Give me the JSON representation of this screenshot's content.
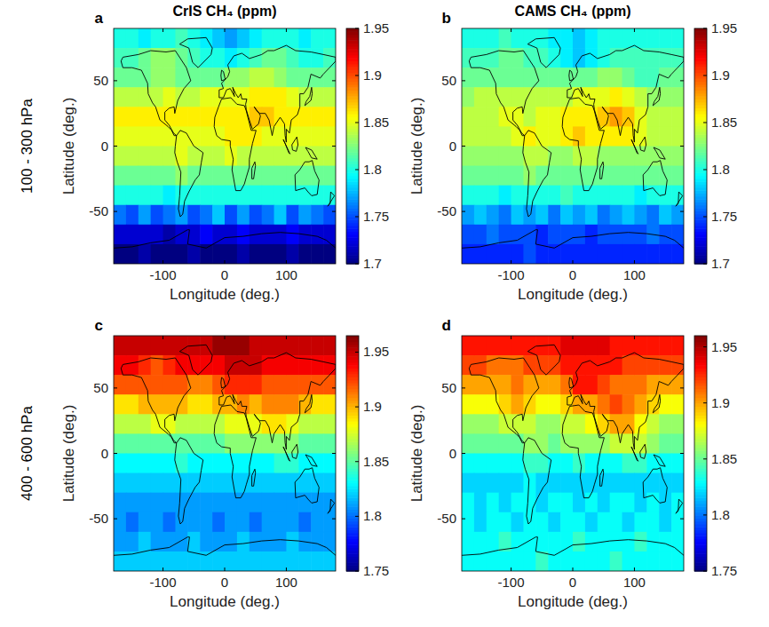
{
  "figure": {
    "column_titles": [
      "CrIS CH₄ (ppm)",
      "CAMS CH₄ (ppm)"
    ],
    "row_labels": [
      "100 - 300 hPa",
      "400 - 600 hPa"
    ]
  },
  "chart_data": [
    {
      "type": "heatmap",
      "label": "a",
      "x_label": "Longitude (deg.)",
      "y_label": "Latitude (deg.)",
      "xlim": [
        -180,
        180
      ],
      "ylim": [
        -90,
        90
      ],
      "xticks": [
        -100,
        0,
        100
      ],
      "yticks": [
        -50,
        0,
        50
      ],
      "x": [
        -170,
        -150,
        -130,
        -110,
        -90,
        -70,
        -50,
        -30,
        -10,
        10,
        30,
        50,
        70,
        90,
        110,
        130,
        150,
        170
      ],
      "y": [
        82.5,
        67.5,
        52.5,
        37.5,
        22.5,
        7.5,
        -7.5,
        -22.5,
        -37.5,
        -52.5,
        -67.5,
        -82.5
      ],
      "cells": [
        [
          1.8,
          1.8,
          1.79,
          1.8,
          1.8,
          1.81,
          1.8,
          1.79,
          1.78,
          1.77,
          1.78,
          1.79,
          1.8,
          1.8,
          1.8,
          1.79,
          1.8,
          1.8
        ],
        [
          1.81,
          1.81,
          1.82,
          1.83,
          1.83,
          1.82,
          1.81,
          1.8,
          1.8,
          1.79,
          1.8,
          1.81,
          1.82,
          1.82,
          1.81,
          1.8,
          1.8,
          1.81
        ],
        [
          1.82,
          1.82,
          1.82,
          1.83,
          1.83,
          1.82,
          1.82,
          1.82,
          1.82,
          1.83,
          1.83,
          1.84,
          1.84,
          1.83,
          1.82,
          1.82,
          1.82,
          1.82
        ],
        [
          1.84,
          1.84,
          1.84,
          1.84,
          1.85,
          1.84,
          1.84,
          1.85,
          1.85,
          1.85,
          1.85,
          1.86,
          1.86,
          1.86,
          1.85,
          1.84,
          1.84,
          1.84
        ],
        [
          1.86,
          1.86,
          1.86,
          1.86,
          1.86,
          1.86,
          1.86,
          1.86,
          1.86,
          1.86,
          1.86,
          1.87,
          1.87,
          1.86,
          1.86,
          1.86,
          1.86,
          1.86
        ],
        [
          1.85,
          1.85,
          1.85,
          1.85,
          1.85,
          1.85,
          1.85,
          1.85,
          1.85,
          1.86,
          1.86,
          1.86,
          1.85,
          1.85,
          1.85,
          1.85,
          1.85,
          1.85
        ],
        [
          1.84,
          1.84,
          1.84,
          1.84,
          1.84,
          1.85,
          1.84,
          1.84,
          1.84,
          1.85,
          1.84,
          1.84,
          1.84,
          1.84,
          1.84,
          1.84,
          1.84,
          1.84
        ],
        [
          1.82,
          1.82,
          1.82,
          1.82,
          1.82,
          1.83,
          1.82,
          1.82,
          1.82,
          1.82,
          1.82,
          1.82,
          1.82,
          1.82,
          1.82,
          1.82,
          1.82,
          1.82
        ],
        [
          1.8,
          1.8,
          1.8,
          1.8,
          1.79,
          1.8,
          1.8,
          1.8,
          1.8,
          1.8,
          1.8,
          1.8,
          1.8,
          1.8,
          1.8,
          1.8,
          1.8,
          1.8
        ],
        [
          1.76,
          1.75,
          1.77,
          1.75,
          1.76,
          1.77,
          1.75,
          1.76,
          1.78,
          1.75,
          1.77,
          1.75,
          1.76,
          1.78,
          1.75,
          1.77,
          1.76,
          1.75
        ],
        [
          1.72,
          1.72,
          1.72,
          1.72,
          1.71,
          1.72,
          1.72,
          1.73,
          1.72,
          1.72,
          1.73,
          1.72,
          1.72,
          1.72,
          1.73,
          1.72,
          1.72,
          1.72
        ],
        [
          1.7,
          1.7,
          1.71,
          1.7,
          1.7,
          1.7,
          1.71,
          1.7,
          1.7,
          1.7,
          1.71,
          1.7,
          1.7,
          1.7,
          1.71,
          1.7,
          1.7,
          1.7
        ]
      ],
      "colorbar_lim": [
        1.7,
        1.95
      ],
      "colorbar_ticks": [
        1.7,
        1.75,
        1.8,
        1.85,
        1.9,
        1.95
      ]
    },
    {
      "type": "heatmap",
      "label": "b",
      "x_label": "Longitude (deg.)",
      "y_label": "Latitude (deg.)",
      "xlim": [
        -180,
        180
      ],
      "ylim": [
        -90,
        90
      ],
      "xticks": [
        -100,
        0,
        100
      ],
      "yticks": [
        -50,
        0,
        50
      ],
      "x": [
        -170,
        -150,
        -130,
        -110,
        -90,
        -70,
        -50,
        -30,
        -10,
        10,
        30,
        50,
        70,
        90,
        110,
        130,
        150,
        170
      ],
      "y": [
        82.5,
        67.5,
        52.5,
        37.5,
        22.5,
        7.5,
        -7.5,
        -22.5,
        -37.5,
        -52.5,
        -67.5,
        -82.5
      ],
      "cells": [
        [
          1.8,
          1.8,
          1.8,
          1.81,
          1.8,
          1.8,
          1.8,
          1.79,
          1.79,
          1.78,
          1.79,
          1.8,
          1.8,
          1.8,
          1.8,
          1.8,
          1.8,
          1.8
        ],
        [
          1.81,
          1.81,
          1.81,
          1.82,
          1.82,
          1.81,
          1.81,
          1.8,
          1.79,
          1.78,
          1.79,
          1.8,
          1.81,
          1.81,
          1.81,
          1.81,
          1.81,
          1.81
        ],
        [
          1.82,
          1.82,
          1.82,
          1.82,
          1.82,
          1.82,
          1.82,
          1.82,
          1.82,
          1.82,
          1.82,
          1.83,
          1.83,
          1.82,
          1.81,
          1.81,
          1.82,
          1.82
        ],
        [
          1.83,
          1.84,
          1.84,
          1.84,
          1.84,
          1.84,
          1.84,
          1.84,
          1.84,
          1.85,
          1.85,
          1.85,
          1.86,
          1.85,
          1.84,
          1.83,
          1.83,
          1.83
        ],
        [
          1.84,
          1.84,
          1.84,
          1.85,
          1.85,
          1.84,
          1.85,
          1.85,
          1.86,
          1.86,
          1.86,
          1.87,
          1.88,
          1.87,
          1.85,
          1.84,
          1.84,
          1.84
        ],
        [
          1.84,
          1.84,
          1.84,
          1.84,
          1.85,
          1.86,
          1.85,
          1.85,
          1.86,
          1.87,
          1.86,
          1.86,
          1.86,
          1.86,
          1.85,
          1.84,
          1.84,
          1.84
        ],
        [
          1.83,
          1.83,
          1.83,
          1.83,
          1.83,
          1.84,
          1.84,
          1.83,
          1.83,
          1.84,
          1.84,
          1.83,
          1.83,
          1.83,
          1.83,
          1.83,
          1.83,
          1.83
        ],
        [
          1.82,
          1.82,
          1.82,
          1.82,
          1.82,
          1.83,
          1.82,
          1.82,
          1.82,
          1.82,
          1.82,
          1.82,
          1.82,
          1.82,
          1.82,
          1.82,
          1.82,
          1.82
        ],
        [
          1.8,
          1.8,
          1.8,
          1.79,
          1.8,
          1.8,
          1.8,
          1.8,
          1.81,
          1.8,
          1.8,
          1.8,
          1.8,
          1.8,
          1.79,
          1.8,
          1.8,
          1.8
        ],
        [
          1.77,
          1.78,
          1.77,
          1.76,
          1.78,
          1.77,
          1.78,
          1.76,
          1.78,
          1.77,
          1.78,
          1.76,
          1.77,
          1.78,
          1.77,
          1.76,
          1.78,
          1.77
        ],
        [
          1.75,
          1.75,
          1.76,
          1.75,
          1.75,
          1.75,
          1.74,
          1.75,
          1.75,
          1.75,
          1.74,
          1.75,
          1.75,
          1.75,
          1.75,
          1.76,
          1.75,
          1.75
        ],
        [
          1.74,
          1.74,
          1.74,
          1.74,
          1.74,
          1.75,
          1.74,
          1.74,
          1.74,
          1.74,
          1.74,
          1.74,
          1.74,
          1.74,
          1.74,
          1.74,
          1.74,
          1.74
        ]
      ],
      "colorbar_lim": [
        1.7,
        1.95
      ],
      "colorbar_ticks": [
        1.7,
        1.75,
        1.8,
        1.85,
        1.9,
        1.95
      ]
    },
    {
      "type": "heatmap",
      "label": "c",
      "x_label": "Longitude (deg.)",
      "y_label": "Latitude (deg.)",
      "xlim": [
        -180,
        180
      ],
      "ylim": [
        -90,
        90
      ],
      "xticks": [
        -100,
        0,
        100
      ],
      "yticks": [
        -50,
        0,
        50
      ],
      "x": [
        -170,
        -150,
        -130,
        -110,
        -90,
        -70,
        -50,
        -30,
        -10,
        10,
        30,
        50,
        70,
        90,
        110,
        130,
        150,
        170
      ],
      "y": [
        82.5,
        67.5,
        52.5,
        37.5,
        22.5,
        7.5,
        -7.5,
        -22.5,
        -37.5,
        -52.5,
        -67.5,
        -82.5
      ],
      "cells": [
        [
          1.95,
          1.95,
          1.95,
          1.95,
          1.95,
          1.95,
          1.95,
          1.95,
          1.96,
          1.96,
          1.96,
          1.95,
          1.95,
          1.95,
          1.95,
          1.95,
          1.95,
          1.95
        ],
        [
          1.94,
          1.94,
          1.93,
          1.92,
          1.93,
          1.94,
          1.94,
          1.94,
          1.94,
          1.95,
          1.95,
          1.95,
          1.94,
          1.94,
          1.94,
          1.94,
          1.94,
          1.94
        ],
        [
          1.92,
          1.92,
          1.92,
          1.92,
          1.92,
          1.92,
          1.91,
          1.91,
          1.92,
          1.93,
          1.93,
          1.93,
          1.92,
          1.92,
          1.92,
          1.92,
          1.92,
          1.92
        ],
        [
          1.89,
          1.89,
          1.9,
          1.9,
          1.9,
          1.9,
          1.89,
          1.89,
          1.9,
          1.9,
          1.91,
          1.9,
          1.91,
          1.91,
          1.91,
          1.9,
          1.89,
          1.89
        ],
        [
          1.87,
          1.87,
          1.87,
          1.88,
          1.88,
          1.87,
          1.87,
          1.87,
          1.87,
          1.88,
          1.88,
          1.88,
          1.89,
          1.89,
          1.88,
          1.87,
          1.87,
          1.87
        ],
        [
          1.85,
          1.85,
          1.85,
          1.85,
          1.85,
          1.85,
          1.85,
          1.85,
          1.85,
          1.86,
          1.86,
          1.86,
          1.86,
          1.86,
          1.86,
          1.85,
          1.85,
          1.85
        ],
        [
          1.83,
          1.83,
          1.83,
          1.83,
          1.83,
          1.84,
          1.83,
          1.83,
          1.83,
          1.83,
          1.83,
          1.83,
          1.83,
          1.84,
          1.84,
          1.83,
          1.83,
          1.83
        ],
        [
          1.82,
          1.82,
          1.82,
          1.82,
          1.82,
          1.82,
          1.82,
          1.82,
          1.82,
          1.82,
          1.82,
          1.82,
          1.82,
          1.82,
          1.82,
          1.82,
          1.82,
          1.82
        ],
        [
          1.81,
          1.81,
          1.81,
          1.81,
          1.81,
          1.81,
          1.81,
          1.81,
          1.81,
          1.81,
          1.81,
          1.81,
          1.81,
          1.81,
          1.81,
          1.81,
          1.81,
          1.81
        ],
        [
          1.81,
          1.8,
          1.81,
          1.81,
          1.8,
          1.81,
          1.81,
          1.81,
          1.8,
          1.81,
          1.81,
          1.8,
          1.81,
          1.81,
          1.81,
          1.8,
          1.81,
          1.81
        ],
        [
          1.81,
          1.81,
          1.82,
          1.81,
          1.81,
          1.81,
          1.82,
          1.81,
          1.81,
          1.81,
          1.82,
          1.81,
          1.81,
          1.81,
          1.82,
          1.81,
          1.81,
          1.81
        ],
        [
          1.82,
          1.82,
          1.82,
          1.82,
          1.82,
          1.82,
          1.82,
          1.82,
          1.82,
          1.82,
          1.82,
          1.82,
          1.82,
          1.82,
          1.82,
          1.82,
          1.82,
          1.82
        ]
      ],
      "colorbar_lim": [
        1.75,
        1.965
      ],
      "colorbar_ticks": [
        1.75,
        1.8,
        1.85,
        1.9,
        1.95
      ]
    },
    {
      "type": "heatmap",
      "label": "d",
      "x_label": "Longitude (deg.)",
      "y_label": "Latitude (deg.)",
      "xlim": [
        -180,
        180
      ],
      "ylim": [
        -90,
        90
      ],
      "xticks": [
        -100,
        0,
        100
      ],
      "yticks": [
        -50,
        0,
        50
      ],
      "x": [
        -170,
        -150,
        -130,
        -110,
        -90,
        -70,
        -50,
        -30,
        -10,
        10,
        30,
        50,
        70,
        90,
        110,
        130,
        150,
        170
      ],
      "y": [
        82.5,
        67.5,
        52.5,
        37.5,
        22.5,
        7.5,
        -7.5,
        -22.5,
        -37.5,
        -52.5,
        -67.5,
        -82.5
      ],
      "cells": [
        [
          1.93,
          1.93,
          1.93,
          1.93,
          1.93,
          1.93,
          1.93,
          1.93,
          1.94,
          1.94,
          1.94,
          1.94,
          1.93,
          1.93,
          1.93,
          1.93,
          1.93,
          1.93
        ],
        [
          1.92,
          1.92,
          1.91,
          1.91,
          1.91,
          1.92,
          1.92,
          1.92,
          1.93,
          1.93,
          1.93,
          1.93,
          1.93,
          1.92,
          1.92,
          1.92,
          1.92,
          1.92
        ],
        [
          1.9,
          1.9,
          1.9,
          1.9,
          1.91,
          1.9,
          1.9,
          1.9,
          1.91,
          1.93,
          1.93,
          1.92,
          1.91,
          1.91,
          1.91,
          1.9,
          1.9,
          1.9
        ],
        [
          1.88,
          1.88,
          1.88,
          1.89,
          1.9,
          1.89,
          1.88,
          1.88,
          1.89,
          1.9,
          1.9,
          1.91,
          1.92,
          1.91,
          1.9,
          1.89,
          1.88,
          1.88
        ],
        [
          1.86,
          1.86,
          1.86,
          1.87,
          1.87,
          1.87,
          1.86,
          1.86,
          1.87,
          1.87,
          1.88,
          1.89,
          1.9,
          1.9,
          1.88,
          1.87,
          1.86,
          1.86
        ],
        [
          1.85,
          1.85,
          1.85,
          1.85,
          1.85,
          1.86,
          1.86,
          1.85,
          1.86,
          1.86,
          1.86,
          1.86,
          1.87,
          1.87,
          1.87,
          1.86,
          1.85,
          1.85
        ],
        [
          1.83,
          1.83,
          1.83,
          1.83,
          1.83,
          1.84,
          1.84,
          1.83,
          1.83,
          1.84,
          1.83,
          1.83,
          1.83,
          1.84,
          1.84,
          1.83,
          1.83,
          1.83
        ],
        [
          1.82,
          1.82,
          1.82,
          1.82,
          1.82,
          1.83,
          1.82,
          1.82,
          1.82,
          1.82,
          1.82,
          1.82,
          1.82,
          1.82,
          1.82,
          1.82,
          1.82,
          1.82
        ],
        [
          1.83,
          1.82,
          1.83,
          1.82,
          1.83,
          1.83,
          1.82,
          1.83,
          1.83,
          1.82,
          1.83,
          1.82,
          1.83,
          1.83,
          1.82,
          1.83,
          1.82,
          1.83
        ],
        [
          1.83,
          1.82,
          1.83,
          1.83,
          1.82,
          1.83,
          1.83,
          1.82,
          1.83,
          1.83,
          1.82,
          1.83,
          1.83,
          1.82,
          1.83,
          1.83,
          1.82,
          1.83
        ],
        [
          1.83,
          1.83,
          1.83,
          1.84,
          1.83,
          1.83,
          1.83,
          1.83,
          1.83,
          1.84,
          1.83,
          1.83,
          1.83,
          1.83,
          1.84,
          1.83,
          1.83,
          1.83
        ],
        [
          1.83,
          1.83,
          1.83,
          1.83,
          1.83,
          1.83,
          1.84,
          1.83,
          1.83,
          1.83,
          1.83,
          1.83,
          1.84,
          1.83,
          1.83,
          1.83,
          1.83,
          1.83
        ]
      ],
      "colorbar_lim": [
        1.75,
        1.96
      ],
      "colorbar_ticks": [
        1.75,
        1.8,
        1.85,
        1.9,
        1.95
      ]
    }
  ]
}
